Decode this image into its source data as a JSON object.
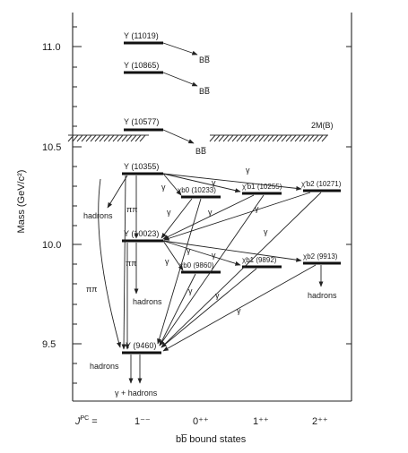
{
  "diagram": {
    "y_axis": {
      "label": "Mass (GeV/c²)",
      "ticks": [
        "11.0",
        "10.5",
        "10.0",
        "9.5"
      ]
    },
    "x_axis": {
      "prefix": "J",
      "prefix_sup": "PC",
      "prefix_eq": "=",
      "columns": [
        "1⁻⁻",
        "0⁺⁺",
        "1⁺⁺",
        "2⁺⁺"
      ],
      "title": "bb̅ bound states"
    },
    "threshold": {
      "label": "2M(B)",
      "mass": 10.56
    },
    "states": [
      {
        "label": "Υ (11019)",
        "mass": 11.019
      },
      {
        "label": "Υ (10865)",
        "mass": 10.865
      },
      {
        "label": "Υ (10577)",
        "mass": 10.577
      },
      {
        "label": "Υ (10355)",
        "mass": 10.355
      },
      {
        "label": "Υ (10023)",
        "mass": 10.023
      },
      {
        "label": "Υ (9460)",
        "mass": 9.46
      },
      {
        "label": "χb0 (10233)",
        "mass": 10.233
      },
      {
        "label": "χ′b1 (10255)",
        "mass": 10.255
      },
      {
        "label": "χ′b2 (10271)",
        "mass": 10.271
      },
      {
        "label": "χb0 (9860)",
        "mass": 9.86
      },
      {
        "label": "χb1 (9892)",
        "mass": 9.892
      },
      {
        "label": "χb2 (9913)",
        "mass": 9.913
      }
    ],
    "bb_label": "BB̅",
    "gamma": "γ",
    "pipi": "ππ",
    "hadrons": "hadrons",
    "gamma_hadrons": "γ + hadrons"
  }
}
